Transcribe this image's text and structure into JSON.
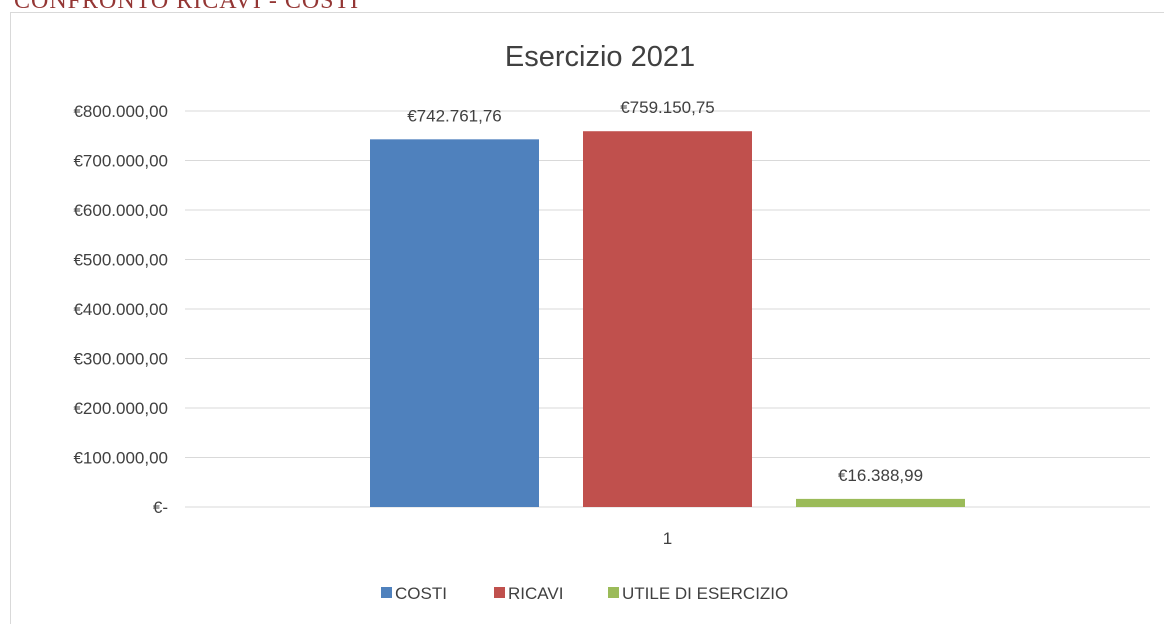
{
  "header": {
    "title": "CONFRONTO RICAVI - COSTI"
  },
  "chart_data": {
    "type": "bar",
    "title": "Esercizio 2021",
    "categories": [
      "1"
    ],
    "series": [
      {
        "name": "COSTI",
        "color": "#4f81bd",
        "values": [
          742761.76
        ],
        "value_labels": [
          "€742.761,76"
        ]
      },
      {
        "name": "RICAVI",
        "color": "#c0504d",
        "values": [
          759150.75
        ],
        "value_labels": [
          "€759.150,75"
        ]
      },
      {
        "name": "UTILE DI ESERCIZIO",
        "color": "#9bbb59",
        "values": [
          16388.99
        ],
        "value_labels": [
          "€16.388,99"
        ]
      }
    ],
    "ylim": [
      0,
      800000
    ],
    "yticks": [
      {
        "value": 0,
        "label": "€-"
      },
      {
        "value": 100000,
        "label": "€100.000,00"
      },
      {
        "value": 200000,
        "label": "€200.000,00"
      },
      {
        "value": 300000,
        "label": "€300.000,00"
      },
      {
        "value": 400000,
        "label": "€400.000,00"
      },
      {
        "value": 500000,
        "label": "€500.000,00"
      },
      {
        "value": 600000,
        "label": "€600.000,00"
      },
      {
        "value": 700000,
        "label": "€700.000,00"
      },
      {
        "value": 800000,
        "label": "€800.000,00"
      }
    ],
    "grid": true,
    "legend": "bottom"
  }
}
